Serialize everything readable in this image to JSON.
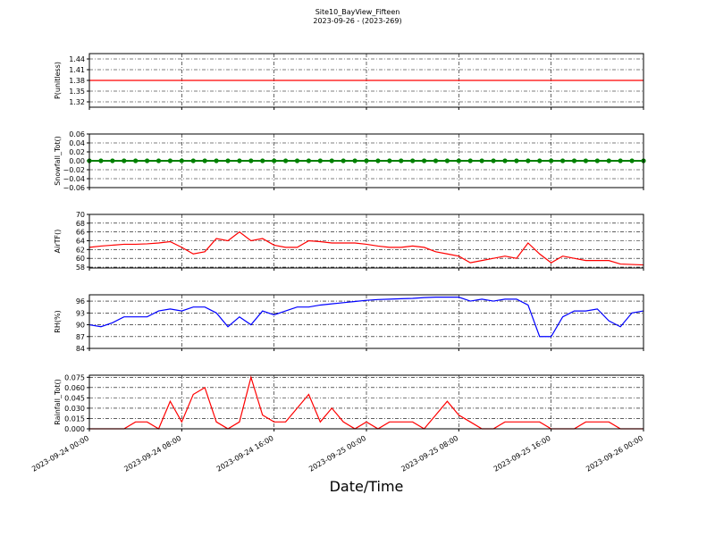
{
  "title": "Site10_BayView_Fifteen",
  "subtitle": "2023-09-26 - (2023-269)",
  "x_label": "Date/Time",
  "chart_data": [
    {
      "type": "line",
      "y_label": "P(unitless)",
      "color": "#ff0000",
      "grid": true,
      "xlim": [
        "2023-09-24 00:00",
        "2023-09-26 00:00"
      ],
      "xticks": [
        "2023-09-24 00:00",
        "2023-09-24 08:00",
        "2023-09-24 16:00",
        "2023-09-25 00:00",
        "2023-09-25 08:00",
        "2023-09-25 16:00",
        "2023-09-26 00:00"
      ],
      "ylim": [
        1.305,
        1.455
      ],
      "yticks": [
        1.32,
        1.35,
        1.38,
        1.41,
        1.44
      ],
      "x": [
        "2023-09-24 00:00",
        "2023-09-24 01:00",
        "2023-09-24 02:00",
        "2023-09-24 03:00",
        "2023-09-24 04:00",
        "2023-09-24 05:00",
        "2023-09-24 06:00",
        "2023-09-24 07:00",
        "2023-09-24 08:00",
        "2023-09-24 09:00",
        "2023-09-24 10:00",
        "2023-09-24 11:00",
        "2023-09-24 12:00",
        "2023-09-24 13:00",
        "2023-09-24 14:00",
        "2023-09-24 15:00",
        "2023-09-24 16:00",
        "2023-09-24 17:00",
        "2023-09-24 18:00",
        "2023-09-24 19:00",
        "2023-09-24 20:00",
        "2023-09-24 21:00",
        "2023-09-24 22:00",
        "2023-09-24 23:00",
        "2023-09-25 00:00",
        "2023-09-25 01:00",
        "2023-09-25 02:00",
        "2023-09-25 03:00",
        "2023-09-25 04:00",
        "2023-09-25 05:00",
        "2023-09-25 06:00",
        "2023-09-25 07:00",
        "2023-09-25 08:00",
        "2023-09-25 09:00",
        "2023-09-25 10:00",
        "2023-09-25 11:00",
        "2023-09-25 12:00",
        "2023-09-25 13:00",
        "2023-09-25 14:00",
        "2023-09-25 15:00",
        "2023-09-25 16:00",
        "2023-09-25 17:00",
        "2023-09-25 18:00",
        "2023-09-25 19:00",
        "2023-09-25 20:00",
        "2023-09-25 21:00",
        "2023-09-25 22:00",
        "2023-09-25 23:00",
        "2023-09-26 00:00"
      ],
      "values": [
        1.38,
        1.38,
        1.38,
        1.38,
        1.38,
        1.38,
        1.38,
        1.38,
        1.38,
        1.38,
        1.38,
        1.38,
        1.38,
        1.38,
        1.38,
        1.38,
        1.38,
        1.38,
        1.38,
        1.38,
        1.38,
        1.38,
        1.38,
        1.38,
        1.38,
        1.38,
        1.38,
        1.38,
        1.38,
        1.38,
        1.38,
        1.38,
        1.38,
        1.38,
        1.38,
        1.38,
        1.38,
        1.38,
        1.38,
        1.38,
        1.38,
        1.38,
        1.38,
        1.38,
        1.38,
        1.38,
        1.38,
        1.38,
        1.38
      ]
    },
    {
      "type": "line",
      "markers": true,
      "y_label": "Snowfall_Tot()",
      "color": "#008000",
      "grid": true,
      "xlim": [
        "2023-09-24 00:00",
        "2023-09-26 00:00"
      ],
      "xticks": [
        "2023-09-24 00:00",
        "2023-09-24 08:00",
        "2023-09-24 16:00",
        "2023-09-25 00:00",
        "2023-09-25 08:00",
        "2023-09-25 16:00",
        "2023-09-26 00:00"
      ],
      "ylim": [
        -0.06,
        0.06
      ],
      "yticks": [
        {
          "value": -0.06,
          "label": "−0.06"
        },
        {
          "value": -0.04,
          "label": "−0.04"
        },
        {
          "value": -0.02,
          "label": "−0.02"
        },
        {
          "value": 0,
          "label": "0.00"
        },
        0.02,
        0.04,
        0.06
      ],
      "x": [
        "2023-09-24 00:00",
        "2023-09-24 01:00",
        "2023-09-24 02:00",
        "2023-09-24 03:00",
        "2023-09-24 04:00",
        "2023-09-24 05:00",
        "2023-09-24 06:00",
        "2023-09-24 07:00",
        "2023-09-24 08:00",
        "2023-09-24 09:00",
        "2023-09-24 10:00",
        "2023-09-24 11:00",
        "2023-09-24 12:00",
        "2023-09-24 13:00",
        "2023-09-24 14:00",
        "2023-09-24 15:00",
        "2023-09-24 16:00",
        "2023-09-24 17:00",
        "2023-09-24 18:00",
        "2023-09-24 19:00",
        "2023-09-24 20:00",
        "2023-09-24 21:00",
        "2023-09-24 22:00",
        "2023-09-24 23:00",
        "2023-09-25 00:00",
        "2023-09-25 01:00",
        "2023-09-25 02:00",
        "2023-09-25 03:00",
        "2023-09-25 04:00",
        "2023-09-25 05:00",
        "2023-09-25 06:00",
        "2023-09-25 07:00",
        "2023-09-25 08:00",
        "2023-09-25 09:00",
        "2023-09-25 10:00",
        "2023-09-25 11:00",
        "2023-09-25 12:00",
        "2023-09-25 13:00",
        "2023-09-25 14:00",
        "2023-09-25 15:00",
        "2023-09-25 16:00",
        "2023-09-25 17:00",
        "2023-09-25 18:00",
        "2023-09-25 19:00",
        "2023-09-25 20:00",
        "2023-09-25 21:00",
        "2023-09-25 22:00",
        "2023-09-25 23:00",
        "2023-09-26 00:00"
      ],
      "values": [
        0,
        0,
        0,
        0,
        0,
        0,
        0,
        0,
        0,
        0,
        0,
        0,
        0,
        0,
        0,
        0,
        0,
        0,
        0,
        0,
        0,
        0,
        0,
        0,
        0,
        0,
        0,
        0,
        0,
        0,
        0,
        0,
        0,
        0,
        0,
        0,
        0,
        0,
        0,
        0,
        0,
        0,
        0,
        0,
        0,
        0,
        0,
        0,
        0
      ]
    },
    {
      "type": "line",
      "y_label": "AirTF()",
      "color": "#ff0000",
      "grid": true,
      "xlim": [
        "2023-09-24 00:00",
        "2023-09-26 00:00"
      ],
      "xticks": [
        "2023-09-24 00:00",
        "2023-09-24 08:00",
        "2023-09-24 16:00",
        "2023-09-25 00:00",
        "2023-09-25 08:00",
        "2023-09-25 16:00",
        "2023-09-26 00:00"
      ],
      "ylim": [
        57.8,
        70
      ],
      "yticks": [
        58,
        60,
        62,
        64,
        66,
        68,
        70
      ],
      "x": [
        "2023-09-24 00:00",
        "2023-09-24 01:00",
        "2023-09-24 02:00",
        "2023-09-24 03:00",
        "2023-09-24 04:00",
        "2023-09-24 05:00",
        "2023-09-24 06:00",
        "2023-09-24 07:00",
        "2023-09-24 08:00",
        "2023-09-24 09:00",
        "2023-09-24 10:00",
        "2023-09-24 11:00",
        "2023-09-24 12:00",
        "2023-09-24 13:00",
        "2023-09-24 14:00",
        "2023-09-24 15:00",
        "2023-09-24 16:00",
        "2023-09-24 17:00",
        "2023-09-24 18:00",
        "2023-09-24 19:00",
        "2023-09-24 20:00",
        "2023-09-24 21:00",
        "2023-09-24 22:00",
        "2023-09-24 23:00",
        "2023-09-25 00:00",
        "2023-09-25 01:00",
        "2023-09-25 02:00",
        "2023-09-25 03:00",
        "2023-09-25 04:00",
        "2023-09-25 05:00",
        "2023-09-25 06:00",
        "2023-09-25 07:00",
        "2023-09-25 08:00",
        "2023-09-25 09:00",
        "2023-09-25 10:00",
        "2023-09-25 11:00",
        "2023-09-25 12:00",
        "2023-09-25 13:00",
        "2023-09-25 14:00",
        "2023-09-25 15:00",
        "2023-09-25 16:00",
        "2023-09-25 17:00",
        "2023-09-25 18:00",
        "2023-09-25 19:00",
        "2023-09-25 20:00",
        "2023-09-25 21:00",
        "2023-09-25 22:00",
        "2023-09-25 23:00",
        "2023-09-26 00:00"
      ],
      "values": [
        62.5,
        62.8,
        63,
        63.2,
        63.2,
        63.3,
        63.5,
        63.8,
        62.5,
        61,
        61.5,
        64.5,
        64,
        66,
        64,
        64.5,
        63,
        62.5,
        62.5,
        64,
        63.8,
        63.5,
        63.5,
        63.5,
        63.2,
        62.8,
        62.5,
        62.5,
        62.8,
        62.5,
        61.5,
        61,
        60.5,
        59,
        59.5,
        60,
        60.5,
        60,
        63.5,
        61,
        59,
        60.5,
        60,
        59.5,
        59.5,
        59.5,
        58.7,
        58.6,
        58.5
      ]
    },
    {
      "type": "line",
      "y_label": "RH(%)",
      "color": "#0000ff",
      "grid": true,
      "xlim": [
        "2023-09-24 00:00",
        "2023-09-26 00:00"
      ],
      "xticks": [
        "2023-09-24 00:00",
        "2023-09-24 08:00",
        "2023-09-24 16:00",
        "2023-09-25 00:00",
        "2023-09-25 08:00",
        "2023-09-25 16:00",
        "2023-09-26 00:00"
      ],
      "ylim": [
        84,
        97.6
      ],
      "yticks": [
        84,
        87,
        90,
        93,
        96
      ],
      "x": [
        "2023-09-24 00:00",
        "2023-09-24 01:00",
        "2023-09-24 02:00",
        "2023-09-24 03:00",
        "2023-09-24 04:00",
        "2023-09-24 05:00",
        "2023-09-24 06:00",
        "2023-09-24 07:00",
        "2023-09-24 08:00",
        "2023-09-24 09:00",
        "2023-09-24 10:00",
        "2023-09-24 11:00",
        "2023-09-24 12:00",
        "2023-09-24 13:00",
        "2023-09-24 14:00",
        "2023-09-24 15:00",
        "2023-09-24 16:00",
        "2023-09-24 17:00",
        "2023-09-24 18:00",
        "2023-09-24 19:00",
        "2023-09-24 20:00",
        "2023-09-24 21:00",
        "2023-09-24 22:00",
        "2023-09-24 23:00",
        "2023-09-25 00:00",
        "2023-09-25 01:00",
        "2023-09-25 02:00",
        "2023-09-25 03:00",
        "2023-09-25 04:00",
        "2023-09-25 05:00",
        "2023-09-25 06:00",
        "2023-09-25 07:00",
        "2023-09-25 08:00",
        "2023-09-25 09:00",
        "2023-09-25 10:00",
        "2023-09-25 11:00",
        "2023-09-25 12:00",
        "2023-09-25 13:00",
        "2023-09-25 14:00",
        "2023-09-25 15:00",
        "2023-09-25 16:00",
        "2023-09-25 17:00",
        "2023-09-25 18:00",
        "2023-09-25 19:00",
        "2023-09-25 20:00",
        "2023-09-25 21:00",
        "2023-09-25 22:00",
        "2023-09-25 23:00",
        "2023-09-26 00:00"
      ],
      "values": [
        90,
        89.5,
        90.5,
        92,
        92,
        92,
        93.5,
        94,
        93.5,
        94.5,
        94.5,
        93,
        89.5,
        92,
        90,
        93.5,
        92.5,
        93.5,
        94.5,
        94.5,
        95,
        95.3,
        95.6,
        95.9,
        96.2,
        96.4,
        96.5,
        96.6,
        96.7,
        96.9,
        97,
        97,
        97,
        96,
        96.5,
        96,
        96.5,
        96.5,
        95,
        87,
        87,
        92,
        93.5,
        93.5,
        94,
        91,
        89.5,
        93,
        93.5
      ]
    },
    {
      "type": "line",
      "y_label": "Rainfall_Tot()",
      "color": "#ff0000",
      "grid": true,
      "show_xtick_labels": true,
      "xlim": [
        "2023-09-24 00:00",
        "2023-09-26 00:00"
      ],
      "xticks": [
        "2023-09-24 00:00",
        "2023-09-24 08:00",
        "2023-09-24 16:00",
        "2023-09-25 00:00",
        "2023-09-25 08:00",
        "2023-09-25 16:00",
        "2023-09-26 00:00"
      ],
      "ylim": [
        0,
        0.078
      ],
      "yticks": [
        {
          "value": 0,
          "label": "0.000"
        },
        0.015,
        {
          "value": 0.03,
          "label": "0.030"
        },
        0.045,
        {
          "value": 0.06,
          "label": "0.060"
        },
        0.075
      ],
      "x": [
        "2023-09-24 00:00",
        "2023-09-24 01:00",
        "2023-09-24 02:00",
        "2023-09-24 03:00",
        "2023-09-24 04:00",
        "2023-09-24 05:00",
        "2023-09-24 06:00",
        "2023-09-24 07:00",
        "2023-09-24 08:00",
        "2023-09-24 09:00",
        "2023-09-24 10:00",
        "2023-09-24 11:00",
        "2023-09-24 12:00",
        "2023-09-24 13:00",
        "2023-09-24 14:00",
        "2023-09-24 15:00",
        "2023-09-24 16:00",
        "2023-09-24 17:00",
        "2023-09-24 18:00",
        "2023-09-24 19:00",
        "2023-09-24 20:00",
        "2023-09-24 21:00",
        "2023-09-24 22:00",
        "2023-09-24 23:00",
        "2023-09-25 00:00",
        "2023-09-25 01:00",
        "2023-09-25 02:00",
        "2023-09-25 03:00",
        "2023-09-25 04:00",
        "2023-09-25 05:00",
        "2023-09-25 06:00",
        "2023-09-25 07:00",
        "2023-09-25 08:00",
        "2023-09-25 09:00",
        "2023-09-25 10:00",
        "2023-09-25 11:00",
        "2023-09-25 12:00",
        "2023-09-25 13:00",
        "2023-09-25 14:00",
        "2023-09-25 15:00",
        "2023-09-25 16:00",
        "2023-09-25 17:00",
        "2023-09-25 18:00",
        "2023-09-25 19:00",
        "2023-09-25 20:00",
        "2023-09-25 21:00",
        "2023-09-25 22:00",
        "2023-09-25 23:00",
        "2023-09-26 00:00"
      ],
      "values": [
        0,
        0,
        0,
        0,
        0.01,
        0.01,
        0,
        0.04,
        0.01,
        0.05,
        0.06,
        0.01,
        0,
        0.01,
        0.075,
        0.02,
        0.01,
        0.01,
        0.03,
        0.05,
        0.01,
        0.03,
        0.01,
        0,
        0.01,
        0,
        0.01,
        0.01,
        0.01,
        0,
        0.02,
        0.04,
        0.02,
        0.01,
        0,
        0,
        0.01,
        0.01,
        0.01,
        0.01,
        0,
        0,
        0,
        0.01,
        0.01,
        0.01,
        0,
        0,
        0
      ]
    }
  ]
}
